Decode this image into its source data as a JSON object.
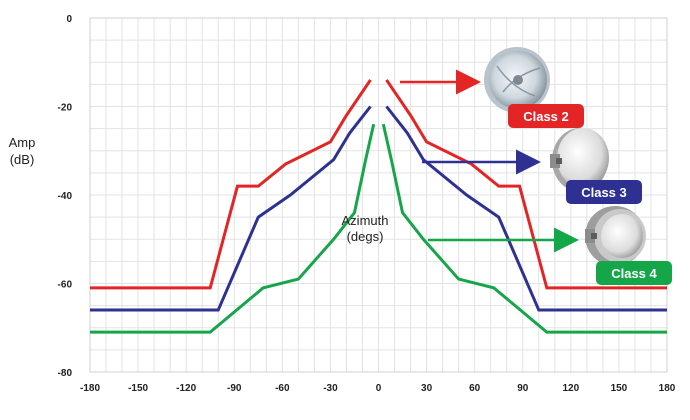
{
  "chart_data": {
    "type": "line",
    "title": "",
    "xlabel": "",
    "ylabel": "Amp (dB)",
    "ylabel_lines": [
      "Amp",
      "(dB)"
    ],
    "annotation_lines": [
      "Azimuth",
      "(degs)"
    ],
    "xlim": [
      -180,
      180
    ],
    "ylim": [
      -80,
      0
    ],
    "x_ticks": [
      -180,
      -150,
      -120,
      -90,
      -60,
      -30,
      0,
      30,
      60,
      90,
      120,
      150,
      180
    ],
    "y_ticks": [
      0,
      -20,
      -40,
      -60,
      -80
    ],
    "grid": true,
    "series": [
      {
        "name": "Class 2",
        "color": "#e42526",
        "points": [
          [
            -180,
            -61
          ],
          [
            -105,
            -61
          ],
          [
            -88,
            -38
          ],
          [
            -75,
            -38
          ],
          [
            -58,
            -33
          ],
          [
            -30,
            -28
          ],
          [
            -20,
            -22
          ],
          [
            -5,
            -14
          ]
        ],
        "points_right": [
          [
            5,
            -14
          ],
          [
            20,
            -22
          ],
          [
            30,
            -28
          ],
          [
            58,
            -33
          ],
          [
            75,
            -38
          ],
          [
            88,
            -38
          ],
          [
            105,
            -61
          ],
          [
            180,
            -61
          ]
        ]
      },
      {
        "name": "Class 3",
        "color": "#2e3192",
        "points": [
          [
            -180,
            -66
          ],
          [
            -100,
            -66
          ],
          [
            -75,
            -45
          ],
          [
            -55,
            -40
          ],
          [
            -28,
            -32
          ],
          [
            -18,
            -26
          ],
          [
            -5,
            -20
          ]
        ],
        "points_right": [
          [
            5,
            -20
          ],
          [
            18,
            -26
          ],
          [
            28,
            -32
          ],
          [
            55,
            -40
          ],
          [
            75,
            -45
          ],
          [
            100,
            -66
          ],
          [
            180,
            -66
          ]
        ]
      },
      {
        "name": "Class 4",
        "color": "#16a64a",
        "points": [
          [
            -180,
            -71
          ],
          [
            -105,
            -71
          ],
          [
            -72,
            -61
          ],
          [
            -50,
            -59
          ],
          [
            -28,
            -50
          ],
          [
            -15,
            -44
          ],
          [
            -8,
            -32
          ],
          [
            -3,
            -24
          ]
        ],
        "points_right": [
          [
            3,
            -24
          ],
          [
            8,
            -32
          ],
          [
            15,
            -44
          ],
          [
            28,
            -50
          ],
          [
            50,
            -59
          ],
          [
            72,
            -61
          ],
          [
            105,
            -71
          ],
          [
            180,
            -71
          ]
        ]
      }
    ],
    "legend": [
      {
        "label": "Class 2",
        "color": "#e42526",
        "icon": "antenna-dish-open-icon"
      },
      {
        "label": "Class 3",
        "color": "#2e3192",
        "icon": "antenna-dish-radome-icon"
      },
      {
        "label": "Class 4",
        "color": "#16a64a",
        "icon": "antenna-dish-shielded-icon"
      }
    ]
  }
}
